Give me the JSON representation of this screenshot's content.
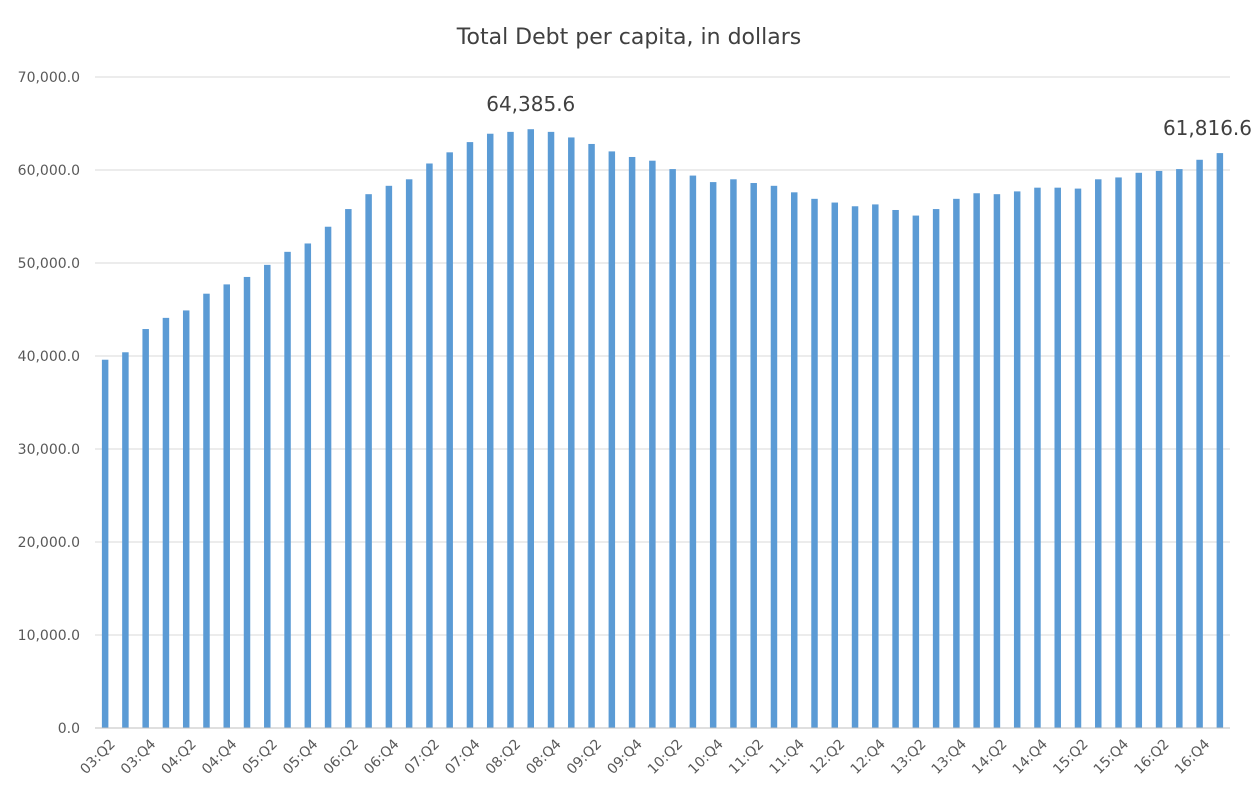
{
  "chart_data": {
    "type": "bar",
    "title": "Total Debt per capita, in dollars",
    "xlabel": "",
    "ylabel": "",
    "ylim": [
      0,
      70000
    ],
    "yticks": [
      0,
      10000,
      20000,
      30000,
      40000,
      50000,
      60000,
      70000
    ],
    "ytick_labels": [
      "0.0",
      "10,000.0",
      "20,000.0",
      "30,000.0",
      "40,000.0",
      "50,000.0",
      "60,000.0",
      "70,000.0"
    ],
    "grid": true,
    "legend": "none",
    "color": "#5b9bd5",
    "categories": [
      "03:Q2",
      "03:Q3",
      "03:Q4",
      "04:Q1",
      "04:Q2",
      "04:Q3",
      "04:Q4",
      "05:Q1",
      "05:Q2",
      "05:Q3",
      "05:Q4",
      "06:Q1",
      "06:Q2",
      "06:Q3",
      "06:Q4",
      "07:Q1",
      "07:Q2",
      "07:Q3",
      "07:Q4",
      "08:Q1",
      "08:Q2",
      "08:Q3",
      "08:Q4",
      "09:Q1",
      "09:Q2",
      "09:Q3",
      "09:Q4",
      "10:Q1",
      "10:Q2",
      "10:Q3",
      "10:Q4",
      "11:Q1",
      "11:Q2",
      "11:Q3",
      "11:Q4",
      "12:Q1",
      "12:Q2",
      "12:Q3",
      "12:Q4",
      "13:Q1",
      "13:Q2",
      "13:Q3",
      "13:Q4",
      "14:Q1",
      "14:Q2",
      "14:Q3",
      "14:Q4",
      "15:Q1",
      "15:Q2",
      "15:Q3",
      "15:Q4",
      "16:Q1",
      "16:Q2",
      "16:Q3",
      "16:Q4",
      "17:Q1"
    ],
    "shown_tick_labels": [
      "03:Q2",
      "03:Q4",
      "04:Q2",
      "04:Q4",
      "05:Q2",
      "05:Q4",
      "06:Q2",
      "06:Q4",
      "07:Q2",
      "07:Q4",
      "08:Q2",
      "08:Q4",
      "09:Q2",
      "09:Q4",
      "10:Q2",
      "10:Q4",
      "11:Q2",
      "11:Q4",
      "12:Q2",
      "12:Q4",
      "13:Q2",
      "13:Q4",
      "14:Q2",
      "14:Q4",
      "15:Q2",
      "15:Q4",
      "16:Q2",
      "16:Q4"
    ],
    "values": [
      39600,
      40400,
      42900,
      44100,
      44900,
      46700,
      47700,
      48500,
      49800,
      51200,
      52100,
      53900,
      55800,
      57400,
      58300,
      59000,
      60700,
      61900,
      63000,
      63900,
      64100,
      64385.6,
      64100,
      63500,
      62800,
      62000,
      61400,
      61000,
      60100,
      59400,
      58700,
      59000,
      58600,
      58300,
      57600,
      56900,
      56500,
      56100,
      56300,
      55700,
      55100,
      55800,
      56900,
      57500,
      57400,
      57700,
      58100,
      58100,
      58000,
      59000,
      59200,
      59700,
      59900,
      60100,
      61100,
      61816.6
    ],
    "data_labels": [
      {
        "category": "08:Q3",
        "text": "64,385.6"
      },
      {
        "category": "17:Q1",
        "text": "61,816.6"
      }
    ]
  }
}
